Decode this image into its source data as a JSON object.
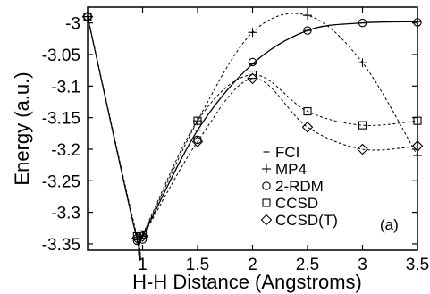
{
  "chart_data": {
    "type": "line",
    "panel_label": "(a)",
    "xlabel": "H-H Distance (Angstroms)",
    "ylabel": "Energy (a.u.)",
    "xlim": [
      0.5,
      3.5
    ],
    "ylim": [
      -3.36,
      -2.975
    ],
    "xticks": [
      1,
      1.5,
      2,
      2.5,
      3,
      3.5
    ],
    "xtick_labels": [
      "1",
      "1.5",
      "2",
      "2.5",
      "3",
      "3.5"
    ],
    "yticks": [
      -3.35,
      -3.3,
      -3.25,
      -3.2,
      -3.15,
      -3.1,
      -3.05,
      -3.0
    ],
    "ytick_labels": [
      "-3.35",
      "-3.3",
      "-3.25",
      "-3.2",
      "-3.15",
      "-3.1",
      "-3.05",
      "-3"
    ],
    "grid": false,
    "legend_position": "lower-right",
    "series": [
      {
        "name": "FCI",
        "marker": "dash",
        "line": "solid",
        "x": [
          0.5,
          0.95,
          1.0,
          1.5,
          2.0,
          2.5,
          3.0,
          3.5
        ],
        "y": [
          -2.99,
          -3.343,
          -3.338,
          -3.17,
          -3.065,
          -3.012,
          -3.0,
          -2.998
        ]
      },
      {
        "name": "MP4",
        "marker": "plus",
        "line": "dotted",
        "x": [
          0.5,
          0.95,
          1.0,
          1.5,
          2.0,
          2.5,
          3.0,
          3.5
        ],
        "y": [
          -2.99,
          -3.34,
          -3.336,
          -3.155,
          -3.015,
          -2.988,
          -3.063,
          -3.21
        ]
      },
      {
        "name": "2-RDM",
        "marker": "circle",
        "line": "none",
        "x": [
          0.5,
          0.95,
          1.0,
          1.5,
          2.0,
          2.5,
          3.0,
          3.5
        ],
        "y": [
          -2.99,
          -3.345,
          -3.343,
          -3.185,
          -3.062,
          -3.012,
          -3.0,
          -2.999
        ]
      },
      {
        "name": "CCSD",
        "marker": "square",
        "line": "dotted",
        "x": [
          0.5,
          0.95,
          1.0,
          1.5,
          2.0,
          2.5,
          3.0,
          3.5
        ],
        "y": [
          -2.99,
          -3.338,
          -3.335,
          -3.155,
          -3.082,
          -3.14,
          -3.162,
          -3.155
        ]
      },
      {
        "name": "CCSD(T)",
        "marker": "diamond",
        "line": "dotted",
        "x": [
          0.5,
          0.95,
          1.0,
          1.5,
          2.0,
          2.5,
          3.0,
          3.5
        ],
        "y": [
          -2.99,
          -3.341,
          -3.338,
          -3.188,
          -3.088,
          -3.165,
          -3.2,
          -3.195
        ]
      }
    ]
  }
}
